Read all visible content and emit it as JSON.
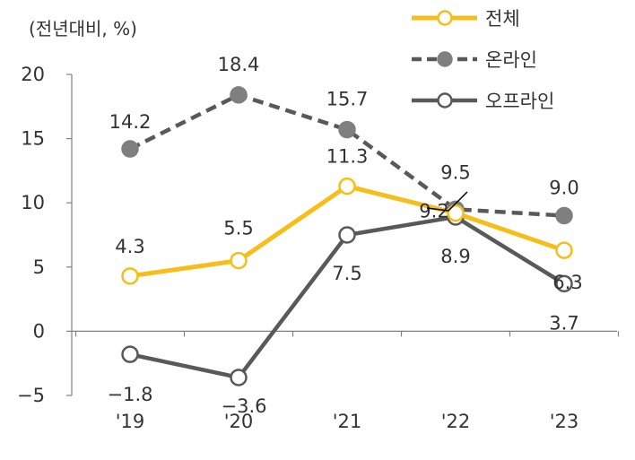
{
  "unit_label": "(전년대비, %)",
  "colors": {
    "total": "#F5BE19",
    "online": "#595959",
    "offline": "#595959",
    "online_marker": "#7F7F7F",
    "axis": "#808080"
  },
  "chart_data": {
    "type": "line",
    "categories": [
      "'19",
      "'20",
      "'21",
      "'22",
      "'23"
    ],
    "ylim": [
      -5,
      20
    ],
    "yticks": [
      -5,
      0,
      5,
      10,
      15,
      20
    ],
    "ytick_labels": [
      "−5",
      "0",
      "5",
      "10",
      "15",
      "20"
    ],
    "grid": false,
    "legend_position": "top-right",
    "series": [
      {
        "key": "total",
        "name": "전체",
        "values": [
          4.3,
          5.5,
          11.3,
          9.2,
          6.3
        ],
        "labels": [
          "4.3",
          "5.5",
          "11.3",
          "9.2",
          "6.3"
        ],
        "style": "solid"
      },
      {
        "key": "online",
        "name": "온라인",
        "values": [
          14.2,
          18.4,
          15.7,
          9.5,
          9.0
        ],
        "labels": [
          "14.2",
          "18.4",
          "15.7",
          "9.5",
          "9.0"
        ],
        "style": "dashed"
      },
      {
        "key": "offline",
        "name": "오프라인",
        "values": [
          -1.8,
          -3.6,
          7.5,
          8.9,
          3.7
        ],
        "labels": [
          "−1.8",
          "−3.6",
          "7.5",
          "8.9",
          "3.7"
        ],
        "style": "solid"
      }
    ]
  }
}
